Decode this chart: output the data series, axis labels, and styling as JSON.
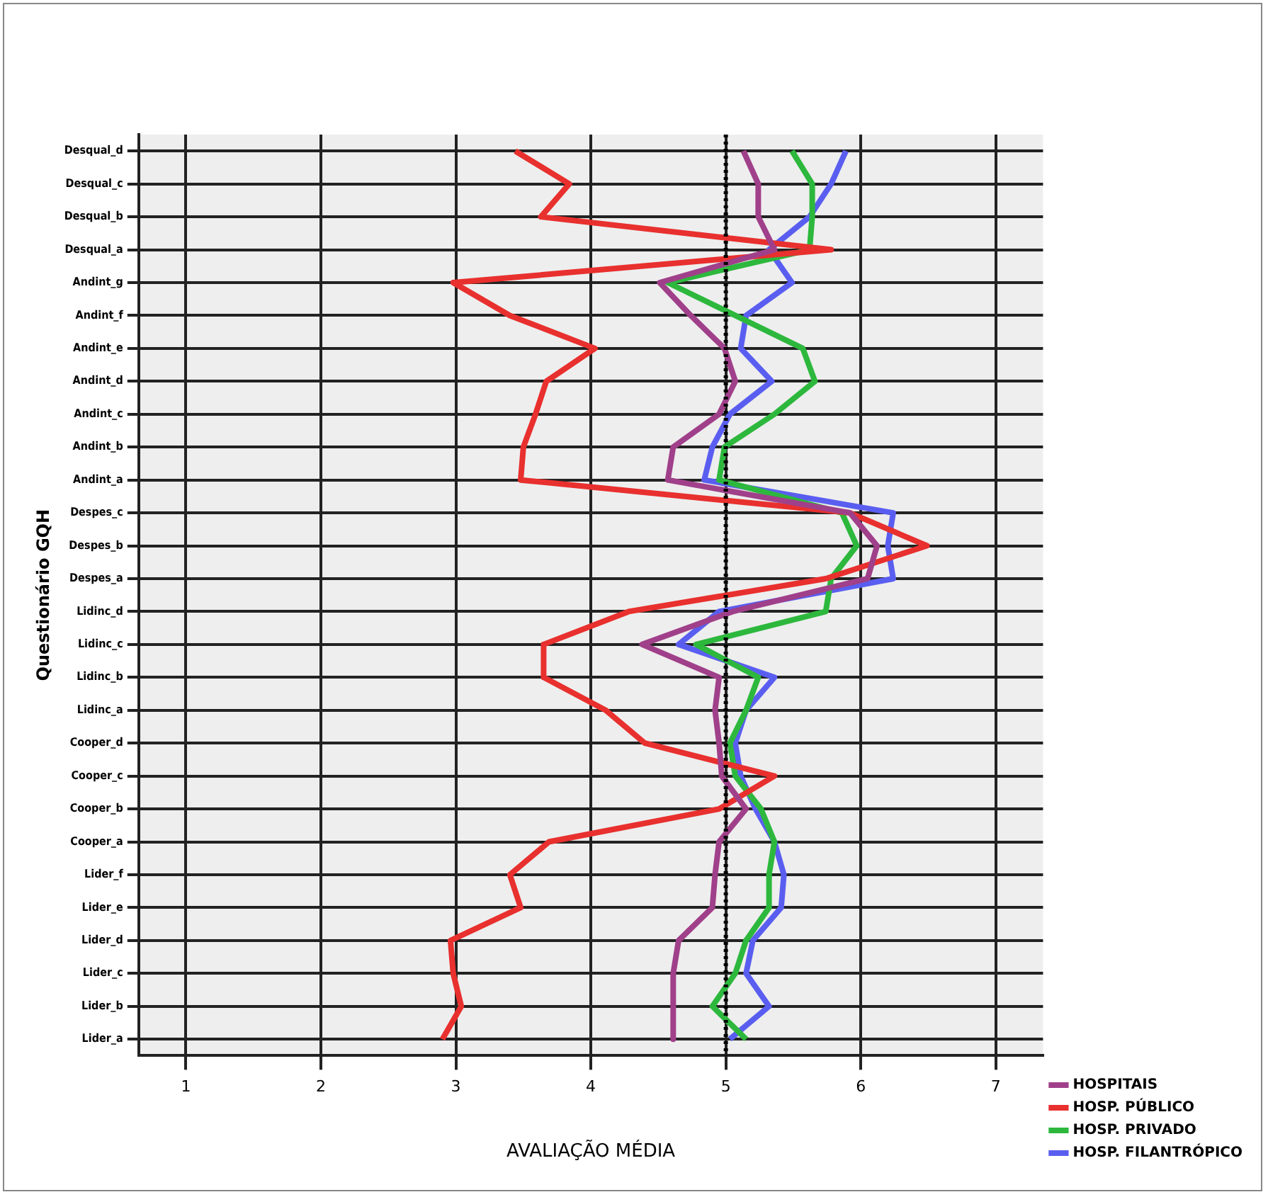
{
  "chart_data": {
    "type": "line",
    "xlabel": "AVALIAÇÃO MÉDIA",
    "ylabel": "Questionário GQH",
    "orientation": "horizontal",
    "categories": [
      "Desqual_d",
      "Desqual_c",
      "Desqual_b",
      "Desqual_a",
      "Andint_g",
      "Andint_f",
      "Andint_e",
      "Andint_d",
      "Andint_c",
      "Andint_b",
      "Andint_a",
      "Despes_c",
      "Despes_b",
      "Despes_a",
      "Lidinc_d",
      "Lidinc_c",
      "Lidinc_b",
      "Lidinc_a",
      "Cooper_d",
      "Cooper_c",
      "Cooper_b",
      "Cooper_a",
      "Lider_f",
      "Lider_e",
      "Lider_d",
      "Lider_c",
      "Lider_b",
      "Lider_a"
    ],
    "series": [
      {
        "name": "HOSPITAIS",
        "color": "#a0408a",
        "values": [
          5.13,
          5.24,
          5.24,
          5.36,
          4.51,
          4.74,
          4.99,
          5.07,
          4.95,
          4.61,
          4.57,
          5.92,
          6.12,
          6.05,
          5.05,
          4.38,
          4.95,
          4.92,
          4.95,
          4.97,
          5.15,
          4.95,
          4.92,
          4.9,
          4.65,
          4.61,
          4.61,
          4.61
        ]
      },
      {
        "name": "HOSP. PÚBLICO",
        "color": "#e8302e",
        "values": [
          3.44,
          3.84,
          3.63,
          5.78,
          2.98,
          3.4,
          4.03,
          3.67,
          3.59,
          3.5,
          3.48,
          5.92,
          6.49,
          5.74,
          4.28,
          3.65,
          3.65,
          4.11,
          4.4,
          5.36,
          4.95,
          3.69,
          3.4,
          3.48,
          2.96,
          2.98,
          3.04,
          2.9
        ]
      },
      {
        "name": "HOSP. PRIVADO",
        "color": "#2db83d",
        "values": [
          5.49,
          5.64,
          5.64,
          5.62,
          4.57,
          5.07,
          5.57,
          5.66,
          5.36,
          4.99,
          4.95,
          5.86,
          5.97,
          5.78,
          5.74,
          4.78,
          5.24,
          5.15,
          5.03,
          5.07,
          5.26,
          5.36,
          5.32,
          5.32,
          5.15,
          5.07,
          4.9,
          5.15
        ]
      },
      {
        "name": "HOSP. FILANTRÓPICO",
        "color": "#5a5ef0",
        "values": [
          5.89,
          5.78,
          5.62,
          5.32,
          5.49,
          5.15,
          5.11,
          5.34,
          5.03,
          4.9,
          4.84,
          6.24,
          6.2,
          6.24,
          4.95,
          4.65,
          5.36,
          5.15,
          5.07,
          5.11,
          5.22,
          5.36,
          5.43,
          5.41,
          5.2,
          5.15,
          5.32,
          5.03
        ]
      }
    ],
    "xlim": [
      0.65,
      7.35
    ],
    "xticks": [
      1,
      2,
      3,
      4,
      5,
      6,
      7
    ],
    "ref_lines": [
      {
        "axis": "x",
        "value": 5,
        "line_style": "dotted",
        "color": "#000000"
      }
    ],
    "grid": true,
    "legend": "bottom right",
    "marker": "none",
    "line_style": "solid"
  }
}
